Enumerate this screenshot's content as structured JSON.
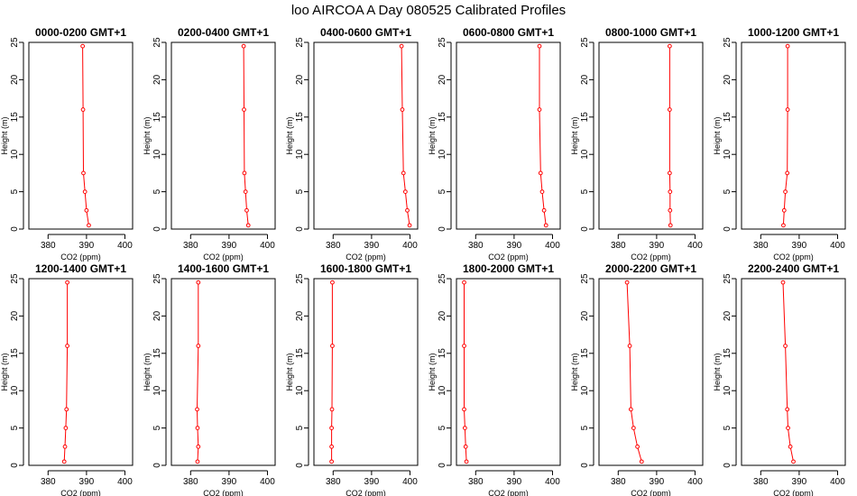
{
  "figure": {
    "title": "loo AIRCOA A  Day 080525  Calibrated Profiles"
  },
  "chart_data": {
    "type": "line",
    "xlabel": "CO2 (ppm)",
    "ylabel": "Height (m)",
    "xlim": [
      375,
      402
    ],
    "ylim": [
      0,
      25
    ],
    "xticks": [
      380,
      390,
      400
    ],
    "yticks": [
      0,
      5,
      10,
      15,
      20,
      25
    ],
    "line_color": "#ff0000",
    "point_color": "#ff0000",
    "panels": [
      {
        "title": "0000-0200 GMT+1",
        "x": [
          390.6,
          390.0,
          389.6,
          389.2,
          389.1,
          389.0
        ],
        "y": [
          0.5,
          2.5,
          5.0,
          7.5,
          16.0,
          24.5
        ]
      },
      {
        "title": "0200-0400 GMT+1",
        "x": [
          395.0,
          394.6,
          394.3,
          394.0,
          393.9,
          393.8
        ],
        "y": [
          0.5,
          2.5,
          5.0,
          7.5,
          16.0,
          24.5
        ]
      },
      {
        "title": "0400-0600 GMT+1",
        "x": [
          399.9,
          399.3,
          398.8,
          398.3,
          398.0,
          397.8
        ],
        "y": [
          0.5,
          2.5,
          5.0,
          7.5,
          16.0,
          24.5
        ]
      },
      {
        "title": "0600-0800 GMT+1",
        "x": [
          398.3,
          397.8,
          397.3,
          396.9,
          396.6,
          396.6
        ],
        "y": [
          0.5,
          2.5,
          5.0,
          7.5,
          16.0,
          24.5
        ]
      },
      {
        "title": "0800-1000 GMT+1",
        "x": [
          393.6,
          393.5,
          393.5,
          393.4,
          393.4,
          393.4
        ],
        "y": [
          0.5,
          2.5,
          5.0,
          7.5,
          16.0,
          24.5
        ]
      },
      {
        "title": "1000-1200 GMT+1",
        "x": [
          385.9,
          386.1,
          386.4,
          386.9,
          387.0,
          387.0
        ],
        "y": [
          0.5,
          2.5,
          5.0,
          7.5,
          16.0,
          24.5
        ]
      },
      {
        "title": "1200-1400 GMT+1",
        "x": [
          384.2,
          384.4,
          384.6,
          384.8,
          385.0,
          385.0
        ],
        "y": [
          0.5,
          2.5,
          5.0,
          7.5,
          16.0,
          24.5
        ]
      },
      {
        "title": "1400-1600 GMT+1",
        "x": [
          381.8,
          382.0,
          381.8,
          381.7,
          382.0,
          382.0
        ],
        "y": [
          0.5,
          2.5,
          5.0,
          7.5,
          16.0,
          24.5
        ]
      },
      {
        "title": "1600-1800 GMT+1",
        "x": [
          379.6,
          379.6,
          379.6,
          379.7,
          379.8,
          379.8
        ],
        "y": [
          0.5,
          2.5,
          5.0,
          7.5,
          16.0,
          24.5
        ]
      },
      {
        "title": "1800-2000 GMT+1",
        "x": [
          377.6,
          377.4,
          377.2,
          377.0,
          377.0,
          377.0
        ],
        "y": [
          0.5,
          2.5,
          5.0,
          7.5,
          16.0,
          24.5
        ]
      },
      {
        "title": "2000-2200 GMT+1",
        "x": [
          386.1,
          385.0,
          384.0,
          383.3,
          383.0,
          382.3
        ],
        "y": [
          0.5,
          2.5,
          5.0,
          7.5,
          16.0,
          24.5
        ]
      },
      {
        "title": "2200-2400 GMT+1",
        "x": [
          388.5,
          387.7,
          387.1,
          386.9,
          386.4,
          385.8
        ],
        "y": [
          0.5,
          2.5,
          5.0,
          7.5,
          16.0,
          24.5
        ]
      }
    ]
  }
}
